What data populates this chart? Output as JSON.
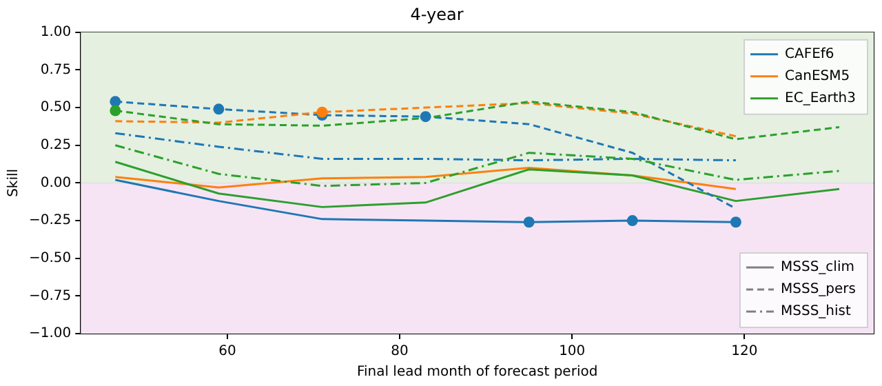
{
  "chart_data": {
    "type": "line",
    "title": "4-year",
    "xlabel": "Final lead month of forecast period",
    "ylabel": "Skill",
    "x": [
      47,
      59,
      71,
      83,
      95,
      107,
      119,
      131
    ],
    "xlim": [
      43,
      135
    ],
    "xticks": [
      60,
      80,
      100,
      120
    ],
    "ylim": [
      -1,
      1
    ],
    "yticks": [
      {
        "value": -1,
        "label": "−1.00"
      },
      {
        "value": -0.75,
        "label": "−0.75"
      },
      {
        "value": -0.5,
        "label": "−0.50"
      },
      {
        "value": -0.25,
        "label": "−0.25"
      },
      {
        "value": 0,
        "label": "0.00"
      },
      {
        "value": 0.25,
        "label": "0.25"
      },
      {
        "value": 0.5,
        "label": "0.50"
      },
      {
        "value": 0.75,
        "label": "0.75"
      },
      {
        "value": 1,
        "label": "1.00"
      }
    ],
    "grid": true,
    "legend": [
      "top right",
      "bottom right"
    ],
    "marker": "none",
    "bands": [
      {
        "axis": "y",
        "from": 0,
        "to": 1,
        "color": "#e5f0e1"
      },
      {
        "axis": "y",
        "from": -1,
        "to": 0,
        "color": "#f6e4f5"
      }
    ],
    "series": [
      {
        "name": "CAFEf6",
        "color": "#1f77b4",
        "line_style": "solid",
        "values": [
          0.02,
          -0.12,
          -0.24,
          -0.25,
          -0.26,
          -0.25,
          -0.26,
          null
        ]
      },
      {
        "name": "CanESM5",
        "color": "#ff7f0e",
        "line_style": "solid",
        "values": [
          0.04,
          -0.03,
          0.03,
          0.04,
          0.1,
          0.05,
          -0.04,
          null
        ]
      },
      {
        "name": "EC_Earth3",
        "color": "#2ca02c",
        "line_style": "solid",
        "values": [
          0.14,
          -0.07,
          -0.16,
          -0.13,
          0.09,
          0.05,
          -0.12,
          -0.04
        ]
      },
      {
        "color": "#1f77b4",
        "line_style": "dashed",
        "values": [
          0.54,
          0.49,
          0.45,
          0.44,
          0.39,
          0.2,
          -0.17,
          null
        ]
      },
      {
        "color": "#ff7f0e",
        "line_style": "dashed",
        "values": [
          0.41,
          0.4,
          0.47,
          0.5,
          0.53,
          0.46,
          0.31,
          null
        ]
      },
      {
        "color": "#2ca02c",
        "line_style": "dashed",
        "values": [
          0.48,
          0.39,
          0.38,
          0.43,
          0.54,
          0.47,
          0.29,
          0.37
        ]
      },
      {
        "color": "#1f77b4",
        "line_style": "dashdot",
        "values": [
          0.33,
          0.24,
          0.16,
          0.16,
          0.15,
          0.16,
          0.15,
          null
        ]
      },
      {
        "color": "#2ca02c",
        "line_style": "dashdot",
        "values": [
          0.25,
          0.06,
          -0.02,
          0.0,
          0.2,
          0.16,
          0.02,
          0.08
        ]
      },
      {
        "type": "scatter",
        "marker": "circle",
        "color": "#1f77b4",
        "x": [
          47,
          59,
          71,
          83,
          95,
          107,
          119
        ],
        "values": [
          0.54,
          0.49,
          0.45,
          0.44,
          -0.26,
          -0.25,
          -0.26
        ]
      },
      {
        "type": "scatter",
        "marker": "circle",
        "color": "#ff7f0e",
        "x": [
          71
        ],
        "values": [
          0.47
        ]
      },
      {
        "type": "scatter",
        "marker": "circle",
        "color": "#2ca02c",
        "x": [
          47
        ],
        "values": [
          0.48
        ]
      },
      {
        "name": "MSSS_clim",
        "color": "#808080",
        "line_style": "solid",
        "values": [
          null,
          null,
          null,
          null,
          null,
          null,
          null,
          null
        ]
      },
      {
        "name": "MSSS_pers",
        "color": "#808080",
        "line_style": "dashed",
        "values": [
          null,
          null,
          null,
          null,
          null,
          null,
          null,
          null
        ]
      },
      {
        "name": "MSSS_hist",
        "color": "#808080",
        "line_style": "dashdot",
        "values": [
          null,
          null,
          null,
          null,
          null,
          null,
          null,
          null
        ]
      }
    ]
  }
}
